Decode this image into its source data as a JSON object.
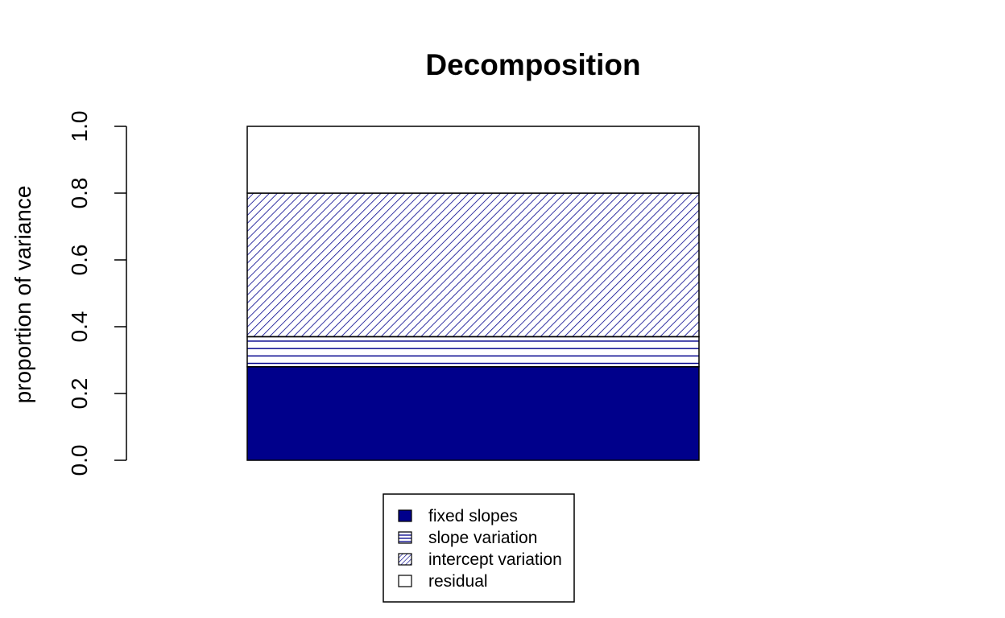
{
  "chart_data": {
    "type": "bar",
    "stacked": true,
    "title": "Decomposition",
    "xlabel": "",
    "ylabel": "proportion of variance",
    "ylim": [
      0,
      1
    ],
    "yticks": [
      "0.0",
      "0.2",
      "0.4",
      "0.6",
      "0.8",
      "1.0"
    ],
    "categories": [
      ""
    ],
    "series": [
      {
        "name": "fixed slopes",
        "values": [
          0.28
        ],
        "color": "#00008B",
        "fill": "solid"
      },
      {
        "name": "slope variation",
        "values": [
          0.09
        ],
        "color": "#00008B",
        "fill": "horizontal-lines"
      },
      {
        "name": "intercept variation",
        "values": [
          0.43
        ],
        "color": "#00008B",
        "fill": "diagonal-lines"
      },
      {
        "name": "residual",
        "values": [
          0.2
        ],
        "color": "#FFFFFF",
        "fill": "none"
      }
    ],
    "legend": {
      "position": "bottom-center"
    },
    "grid": false
  }
}
